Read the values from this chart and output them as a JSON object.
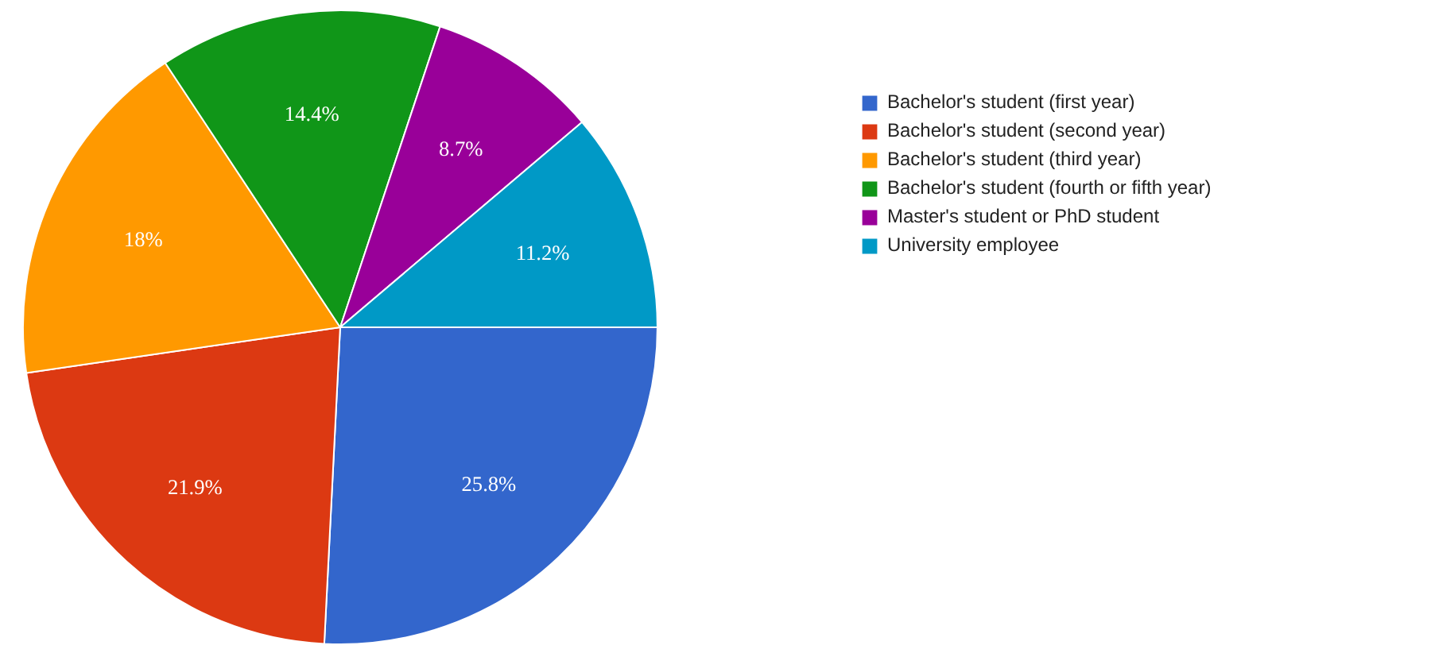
{
  "chart_data": {
    "type": "pie",
    "categories": [
      "Bachelor's student (first year)",
      "Bachelor's student (second year)",
      "Bachelor's student (third year)",
      "Bachelor's student (fourth or fifth year)",
      "Master's student or PhD student",
      "University employee"
    ],
    "values": [
      25.8,
      21.9,
      18,
      14.4,
      8.7,
      11.2
    ],
    "value_labels": [
      "25.8%",
      "21.9%",
      "18%",
      "14.4%",
      "8.7%",
      "11.2%"
    ],
    "colors": [
      "#3366cc",
      "#dc3912",
      "#ff9900",
      "#109618",
      "#990099",
      "#0099c6"
    ],
    "legend": "right"
  }
}
